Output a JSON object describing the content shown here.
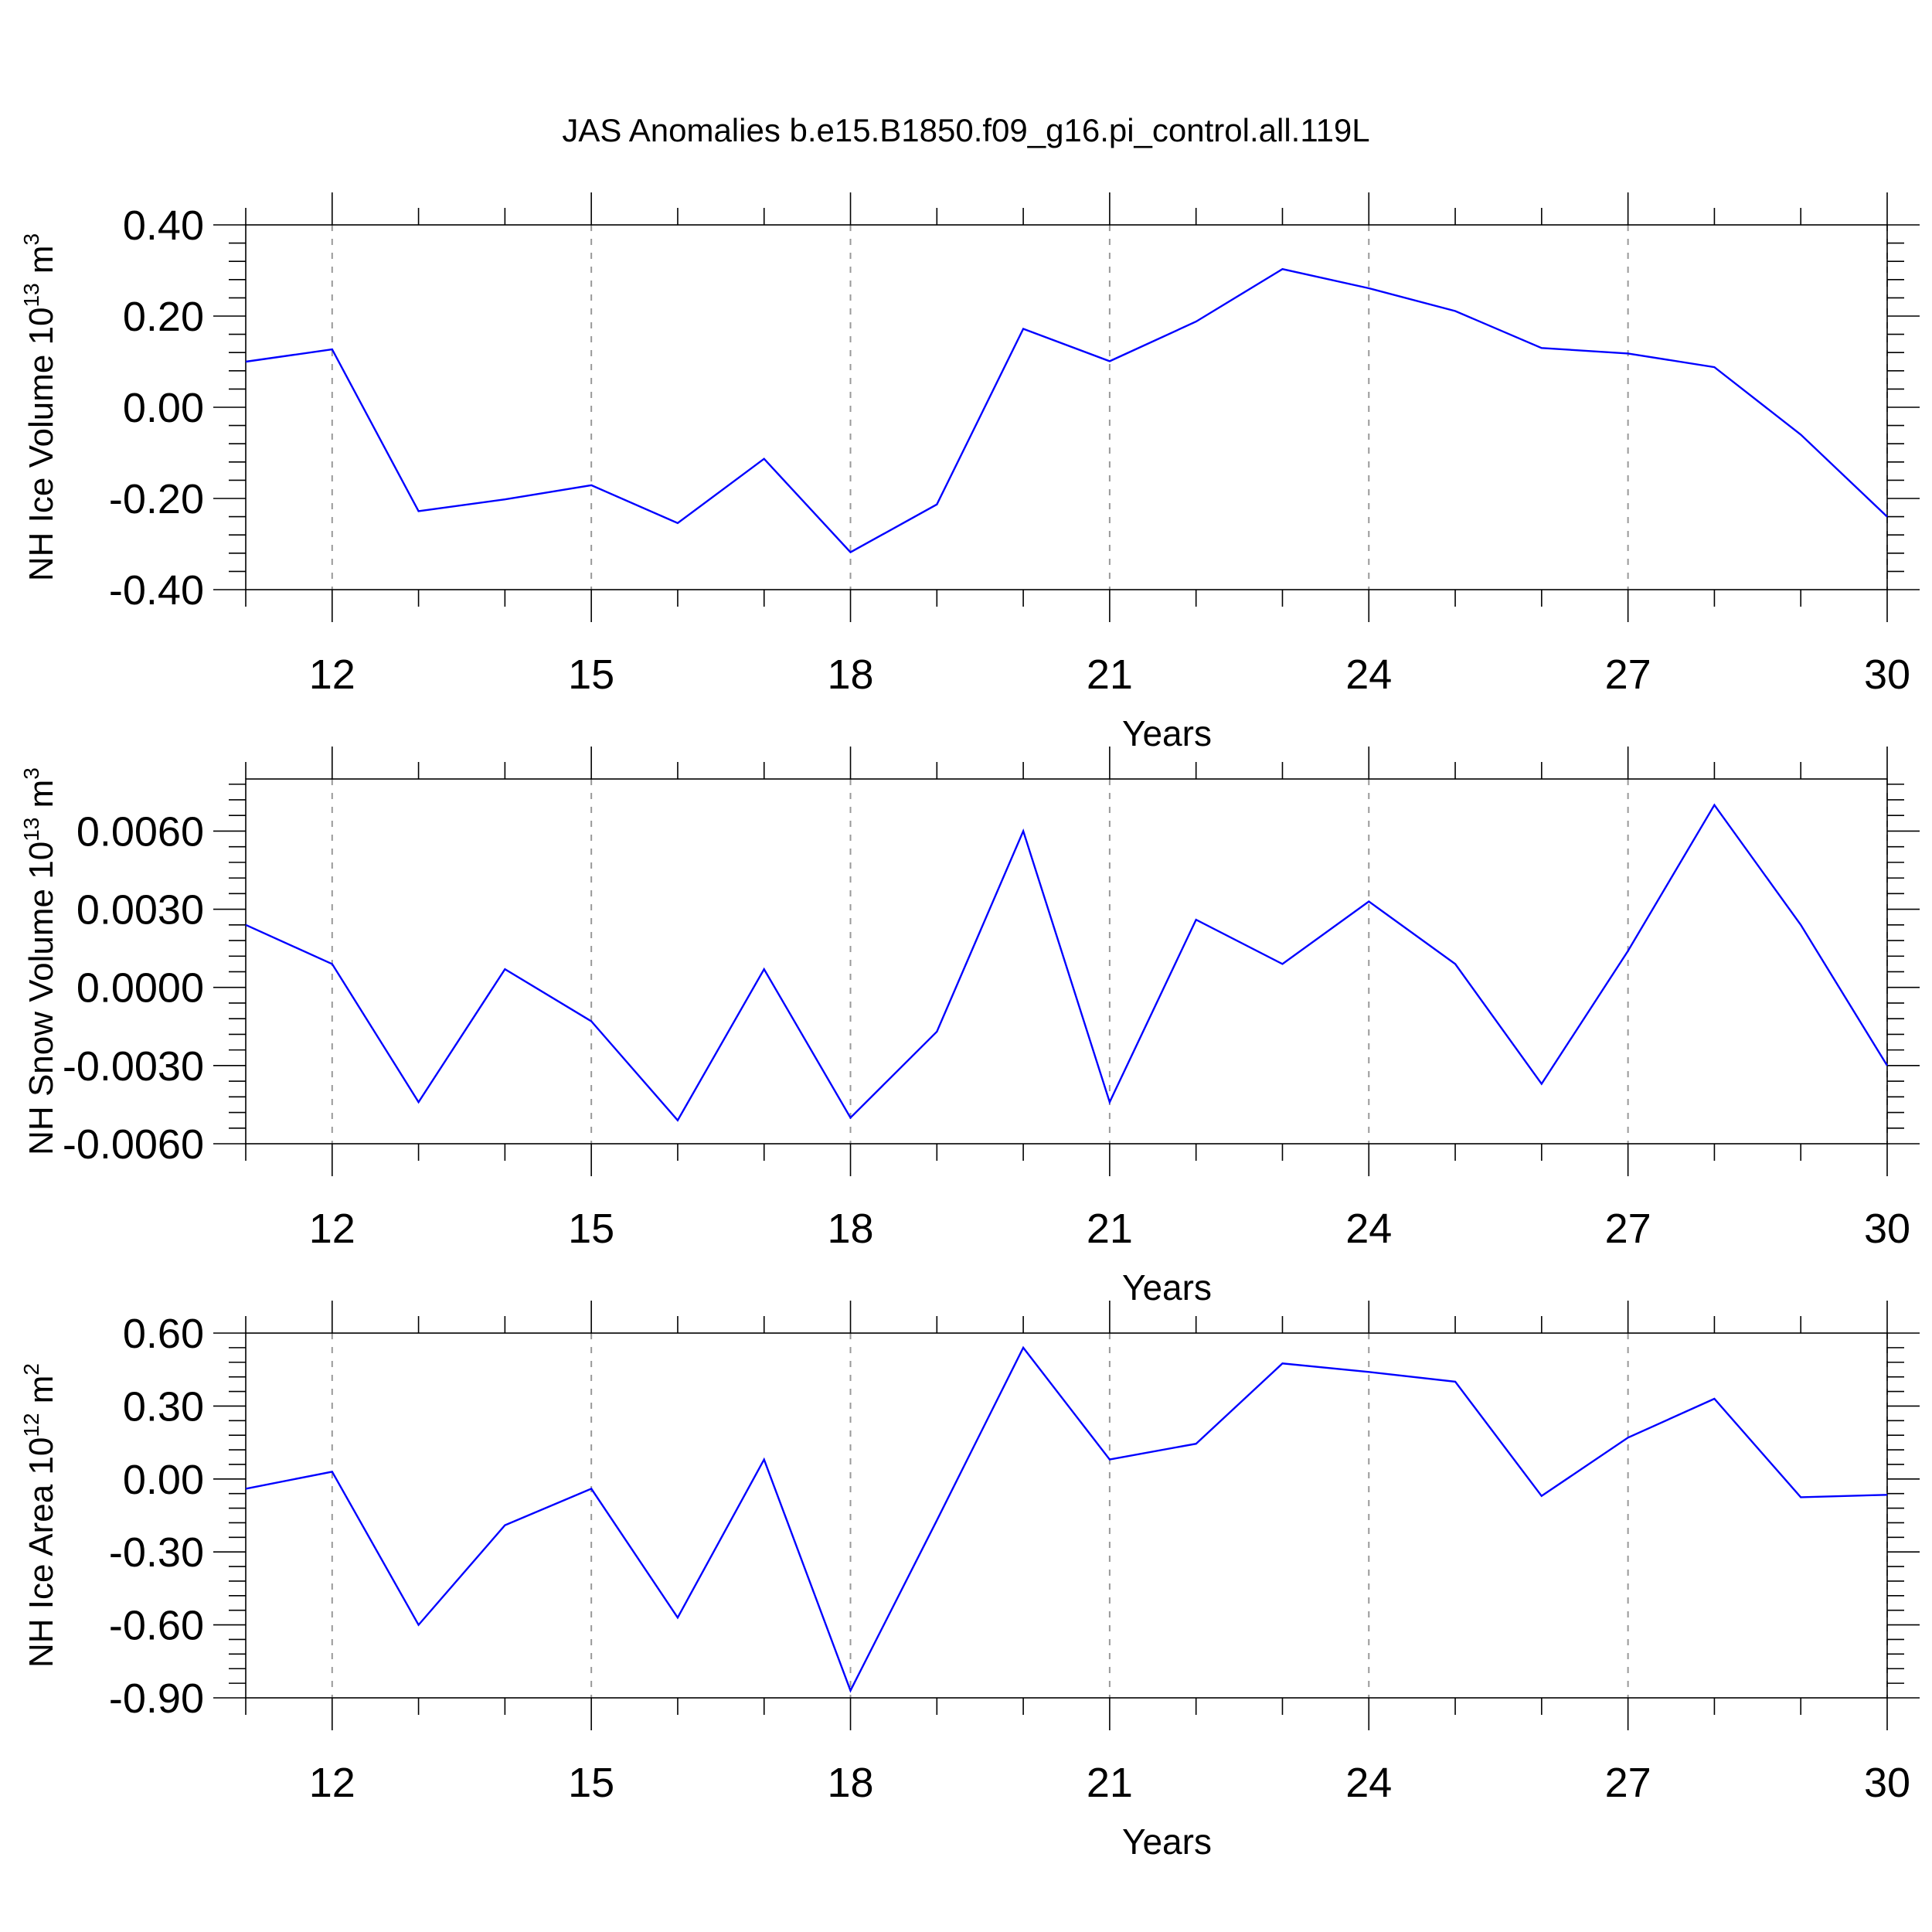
{
  "page_title": "JAS Anomalies b.e15.B1850.f09_g16.pi_control.all.119L",
  "chart_data": [
    {
      "type": "line",
      "ylabel_base": "NH Ice Volume 10",
      "ylabel_exp": "13",
      "ylabel_unit": " m",
      "ylabel_unit_exp": "3",
      "xlabel": "Years",
      "xlim": [
        11,
        30
      ],
      "ylim": [
        -0.4,
        0.4
      ],
      "x_ticks": [
        "12",
        "15",
        "18",
        "21",
        "24",
        "27",
        "30"
      ],
      "y_ticks": [
        "0.40",
        "0.20",
        "0.00",
        "-0.20",
        "-0.40"
      ],
      "x": [
        11,
        12,
        13,
        14,
        15,
        16,
        17,
        18,
        19,
        20,
        21,
        22,
        23,
        24,
        25,
        26,
        27,
        28,
        29,
        30
      ],
      "values": [
        0.1,
        0.127,
        -0.228,
        -0.202,
        -0.171,
        -0.254,
        -0.113,
        -0.318,
        -0.213,
        0.172,
        0.101,
        0.188,
        0.303,
        0.261,
        0.211,
        0.13,
        0.118,
        0.088,
        -0.06,
        -0.24
      ],
      "series_color": "#0000ff",
      "grid": "vertical dashed at labeled x ticks"
    },
    {
      "type": "line",
      "ylabel_base": "NH Snow Volume 10",
      "ylabel_exp": "13",
      "ylabel_unit": " m",
      "ylabel_unit_exp": "3",
      "xlabel": "Years",
      "xlim": [
        11,
        30
      ],
      "ylim": [
        -0.006,
        0.008
      ],
      "x_ticks": [
        "12",
        "15",
        "18",
        "21",
        "24",
        "27",
        "30"
      ],
      "y_ticks": [
        "0.0060",
        "0.0030",
        "0.0000",
        "-0.0030",
        "-0.0060"
      ],
      "x": [
        11,
        12,
        13,
        14,
        15,
        16,
        17,
        18,
        19,
        20,
        21,
        22,
        23,
        24,
        25,
        26,
        27,
        28,
        29,
        30
      ],
      "values": [
        0.0024,
        0.0009,
        -0.0044,
        0.0007,
        -0.0013,
        -0.0051,
        0.0007,
        -0.005,
        -0.0017,
        0.006,
        -0.0044,
        0.0026,
        0.0009,
        0.0033,
        0.0009,
        -0.0037,
        0.0014,
        0.007,
        0.0024,
        -0.003
      ],
      "series_color": "#0000ff",
      "grid": "vertical dashed at labeled x ticks"
    },
    {
      "type": "line",
      "ylabel_base": "NH Ice Area 10",
      "ylabel_exp": "12",
      "ylabel_unit": " m",
      "ylabel_unit_exp": "2",
      "xlabel": "Years",
      "xlim": [
        11,
        30
      ],
      "ylim": [
        -0.9,
        0.6
      ],
      "x_ticks": [
        "12",
        "15",
        "18",
        "21",
        "24",
        "27",
        "30"
      ],
      "y_ticks": [
        "0.60",
        "0.30",
        "0.00",
        "-0.30",
        "-0.60",
        "-0.90"
      ],
      "x": [
        11,
        12,
        13,
        14,
        15,
        16,
        17,
        18,
        19,
        20,
        21,
        22,
        23,
        24,
        25,
        26,
        27,
        28,
        29,
        30
      ],
      "values": [
        -0.04,
        0.03,
        -0.6,
        -0.19,
        -0.04,
        -0.57,
        0.08,
        -0.87,
        -0.17,
        0.54,
        0.08,
        0.145,
        0.475,
        0.44,
        0.4,
        -0.07,
        0.17,
        0.33,
        -0.075,
        -0.065
      ],
      "series_color": "#0000ff",
      "grid": "vertical dashed at labeled x ticks"
    }
  ]
}
